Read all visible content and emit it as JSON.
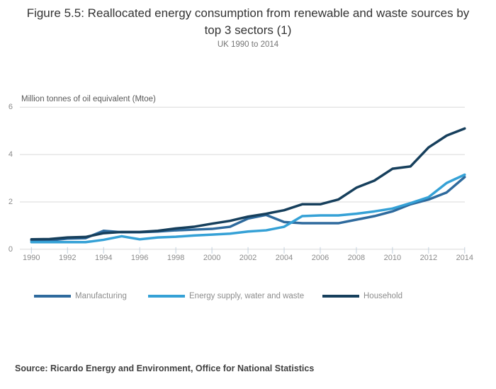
{
  "header": {
    "title": "Figure 5.5: Reallocated energy consumption from renewable and waste sources by top 3 sectors (1)",
    "subtitle": "UK 1990 to 2014"
  },
  "chart_data": {
    "type": "line",
    "title": "Figure 5.5: Reallocated energy consumption from renewable and waste sources by top 3 sectors (1)",
    "subtitle": "UK 1990 to 2014",
    "ylabel": "Million tonnes of oil equivalent (Mtoe)",
    "xlabel": "",
    "ylim": [
      0,
      6
    ],
    "y_ticks": [
      0,
      2,
      4,
      6
    ],
    "x": [
      1990,
      1991,
      1992,
      1993,
      1994,
      1995,
      1996,
      1997,
      1998,
      1999,
      2000,
      2001,
      2002,
      2003,
      2004,
      2005,
      2006,
      2007,
      2008,
      2009,
      2010,
      2011,
      2012,
      2013,
      2014
    ],
    "x_tick_labels": [
      "1990",
      "1992",
      "1994",
      "1996",
      "1998",
      "2000",
      "2002",
      "2004",
      "2006",
      "2008",
      "2010",
      "2012",
      "2014"
    ],
    "grid": "horizontal",
    "legend_position": "bottom",
    "series": [
      {
        "name": "Manufacturing",
        "color": "#2e6a9d",
        "values": [
          0.37,
          0.37,
          0.45,
          0.47,
          0.78,
          0.72,
          0.72,
          0.75,
          0.8,
          0.83,
          0.86,
          0.95,
          1.3,
          1.45,
          1.15,
          1.1,
          1.1,
          1.1,
          1.25,
          1.4,
          1.6,
          1.9,
          2.1,
          2.4,
          3.05
        ]
      },
      {
        "name": "Energy supply, water and waste",
        "color": "#35a1d6",
        "values": [
          0.3,
          0.3,
          0.3,
          0.3,
          0.4,
          0.55,
          0.42,
          0.5,
          0.53,
          0.58,
          0.62,
          0.66,
          0.75,
          0.8,
          0.95,
          1.4,
          1.43,
          1.43,
          1.5,
          1.6,
          1.72,
          1.95,
          2.2,
          2.8,
          3.15
        ]
      },
      {
        "name": "Household",
        "color": "#163f5c",
        "values": [
          0.42,
          0.43,
          0.5,
          0.52,
          0.68,
          0.73,
          0.73,
          0.78,
          0.88,
          0.95,
          1.08,
          1.2,
          1.38,
          1.5,
          1.65,
          1.9,
          1.9,
          2.1,
          2.6,
          2.9,
          3.4,
          3.5,
          4.3,
          4.8,
          5.1
        ]
      }
    ],
    "style": {
      "grid_color": "#d9d9d9",
      "tick_color": "#c2cfdb",
      "axis_label_color": "#8a8a8a"
    }
  },
  "footer": {
    "source": "Source: Ricardo Energy and Environment, Office for National Statistics"
  }
}
